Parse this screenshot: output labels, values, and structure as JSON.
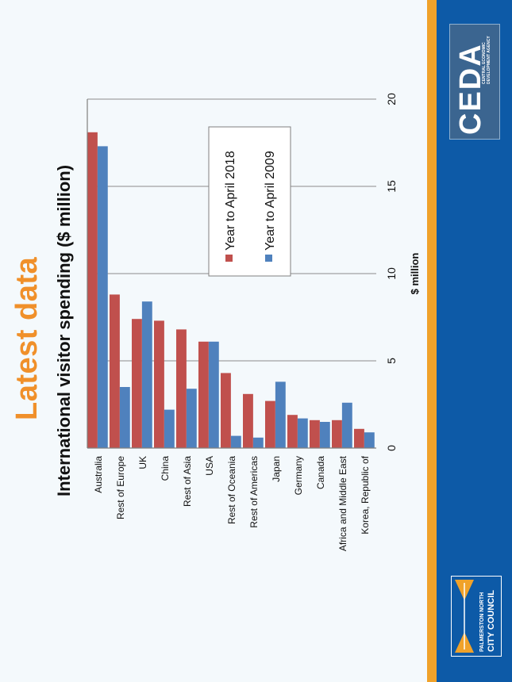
{
  "slide": {
    "title": "Latest data",
    "chart_heading": "International visitor spending ($ million)"
  },
  "logos": {
    "ceda_main": "CEDA",
    "ceda_sub": "CENTRAL ECONOMIC DEVELOPMENT AGENCY",
    "council_line1": "PALMERSTON NORTH",
    "council_line2": "CITY COUNCIL"
  },
  "colors": {
    "accent_orange": "#f0902a",
    "brand_blue": "#0d5aa7",
    "series_2018": "#c0504d",
    "series_2009": "#4f81bd"
  },
  "chart_data": {
    "type": "bar",
    "orientation": "horizontal",
    "categories": [
      "Australia",
      "Rest of Europe",
      "UK",
      "China",
      "Rest of Asia",
      "USA",
      "Rest of Oceania",
      "Rest of Americas",
      "Japan",
      "Germany",
      "Canada",
      "Africa and Middle East",
      "Korea, Republic of"
    ],
    "series": [
      {
        "name": "Year to April 2018",
        "color": "#c0504d",
        "values": [
          18.1,
          8.8,
          7.4,
          7.3,
          6.8,
          6.1,
          4.3,
          3.1,
          2.7,
          1.9,
          1.6,
          1.6,
          1.1
        ]
      },
      {
        "name": "Year to April 2009",
        "color": "#4f81bd",
        "values": [
          17.3,
          3.5,
          8.4,
          2.2,
          3.4,
          6.1,
          0.7,
          0.6,
          3.8,
          1.7,
          1.5,
          2.6,
          0.9
        ]
      }
    ],
    "title": "International visitor spending ($ million)",
    "xlabel": "$ million",
    "ylabel": "",
    "xlim": [
      0,
      20
    ],
    "ticks": [
      "0",
      "5",
      "10",
      "15",
      "20"
    ],
    "grid": true,
    "legend": "upper-right"
  }
}
